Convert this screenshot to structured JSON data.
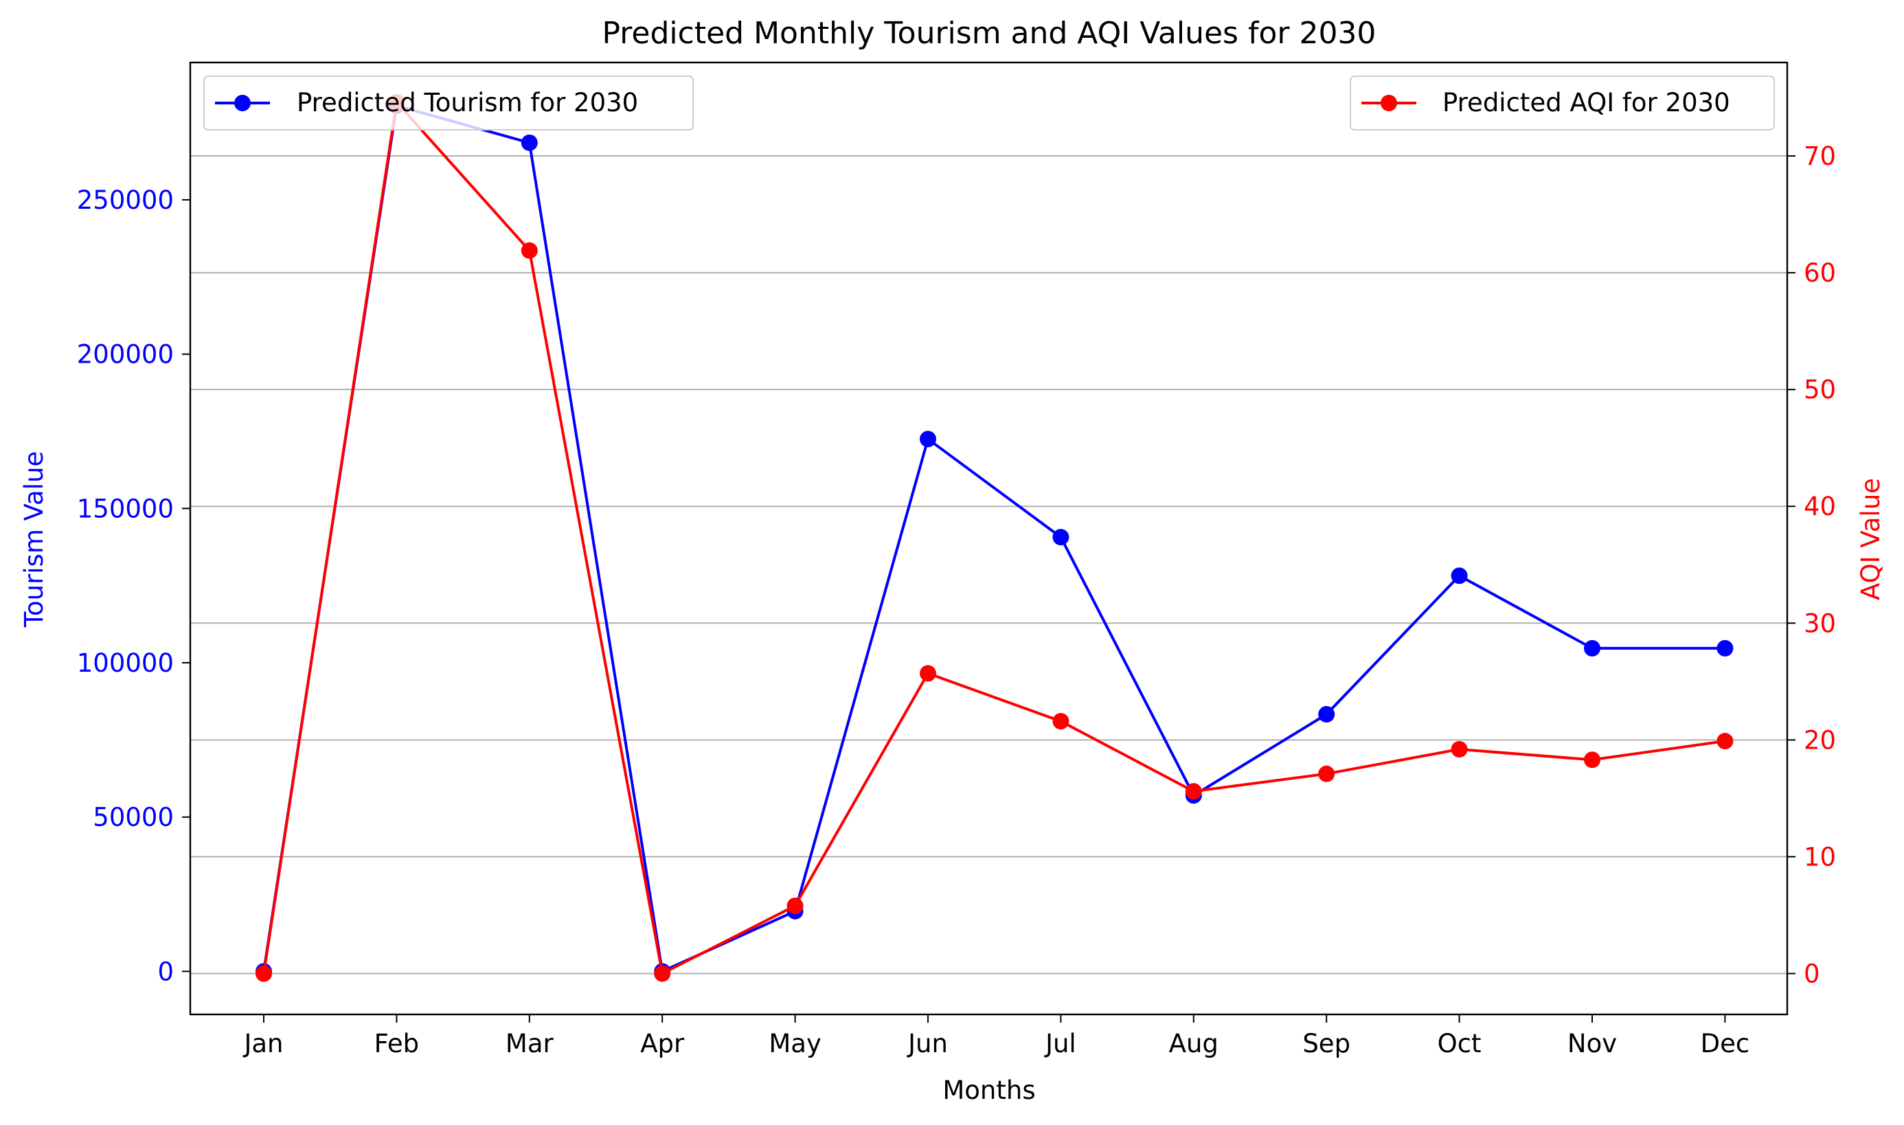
{
  "chart_data": {
    "type": "line",
    "title": "Predicted Monthly Tourism and AQI Values for 2030",
    "xlabel": "Months",
    "ylabel_left": "Tourism Value",
    "ylabel_right": "AQI Value",
    "categories": [
      "Jan",
      "Feb",
      "Mar",
      "Apr",
      "May",
      "Jun",
      "Jul",
      "Aug",
      "Sep",
      "Oct",
      "Nov",
      "Dec"
    ],
    "left_axis": {
      "ylim": [
        -13950,
        294500
      ],
      "ticks": [
        0,
        50000,
        100000,
        150000,
        200000,
        250000
      ],
      "tick_labels": [
        "0",
        "50000",
        "100000",
        "150000",
        "200000",
        "250000"
      ],
      "color": "#0000ff"
    },
    "right_axis": {
      "ylim": [
        -3.5,
        78
      ],
      "ticks": [
        0,
        10,
        20,
        30,
        40,
        50,
        60,
        70
      ],
      "tick_labels": [
        "0",
        "10",
        "20",
        "30",
        "40",
        "50",
        "60",
        "70"
      ],
      "color": "#ff0000"
    },
    "grid": "horizontal lines at right-axis ticks",
    "series": [
      {
        "name": "Predicted Tourism for 2030",
        "axis": "left",
        "color": "#0000ff",
        "values": [
          0,
          280500,
          268500,
          0,
          19500,
          172500,
          140700,
          57000,
          83300,
          128200,
          104700,
          104700
        ]
      },
      {
        "name": "Predicted AQI for 2030",
        "axis": "right",
        "color": "#ff0000",
        "values": [
          0,
          74.6,
          61.9,
          0,
          5.8,
          25.7,
          21.6,
          15.6,
          17.1,
          19.2,
          18.3,
          19.9
        ]
      }
    ],
    "legends": [
      {
        "series": 0,
        "placement": "top-left"
      },
      {
        "series": 1,
        "placement": "top-right"
      }
    ]
  }
}
